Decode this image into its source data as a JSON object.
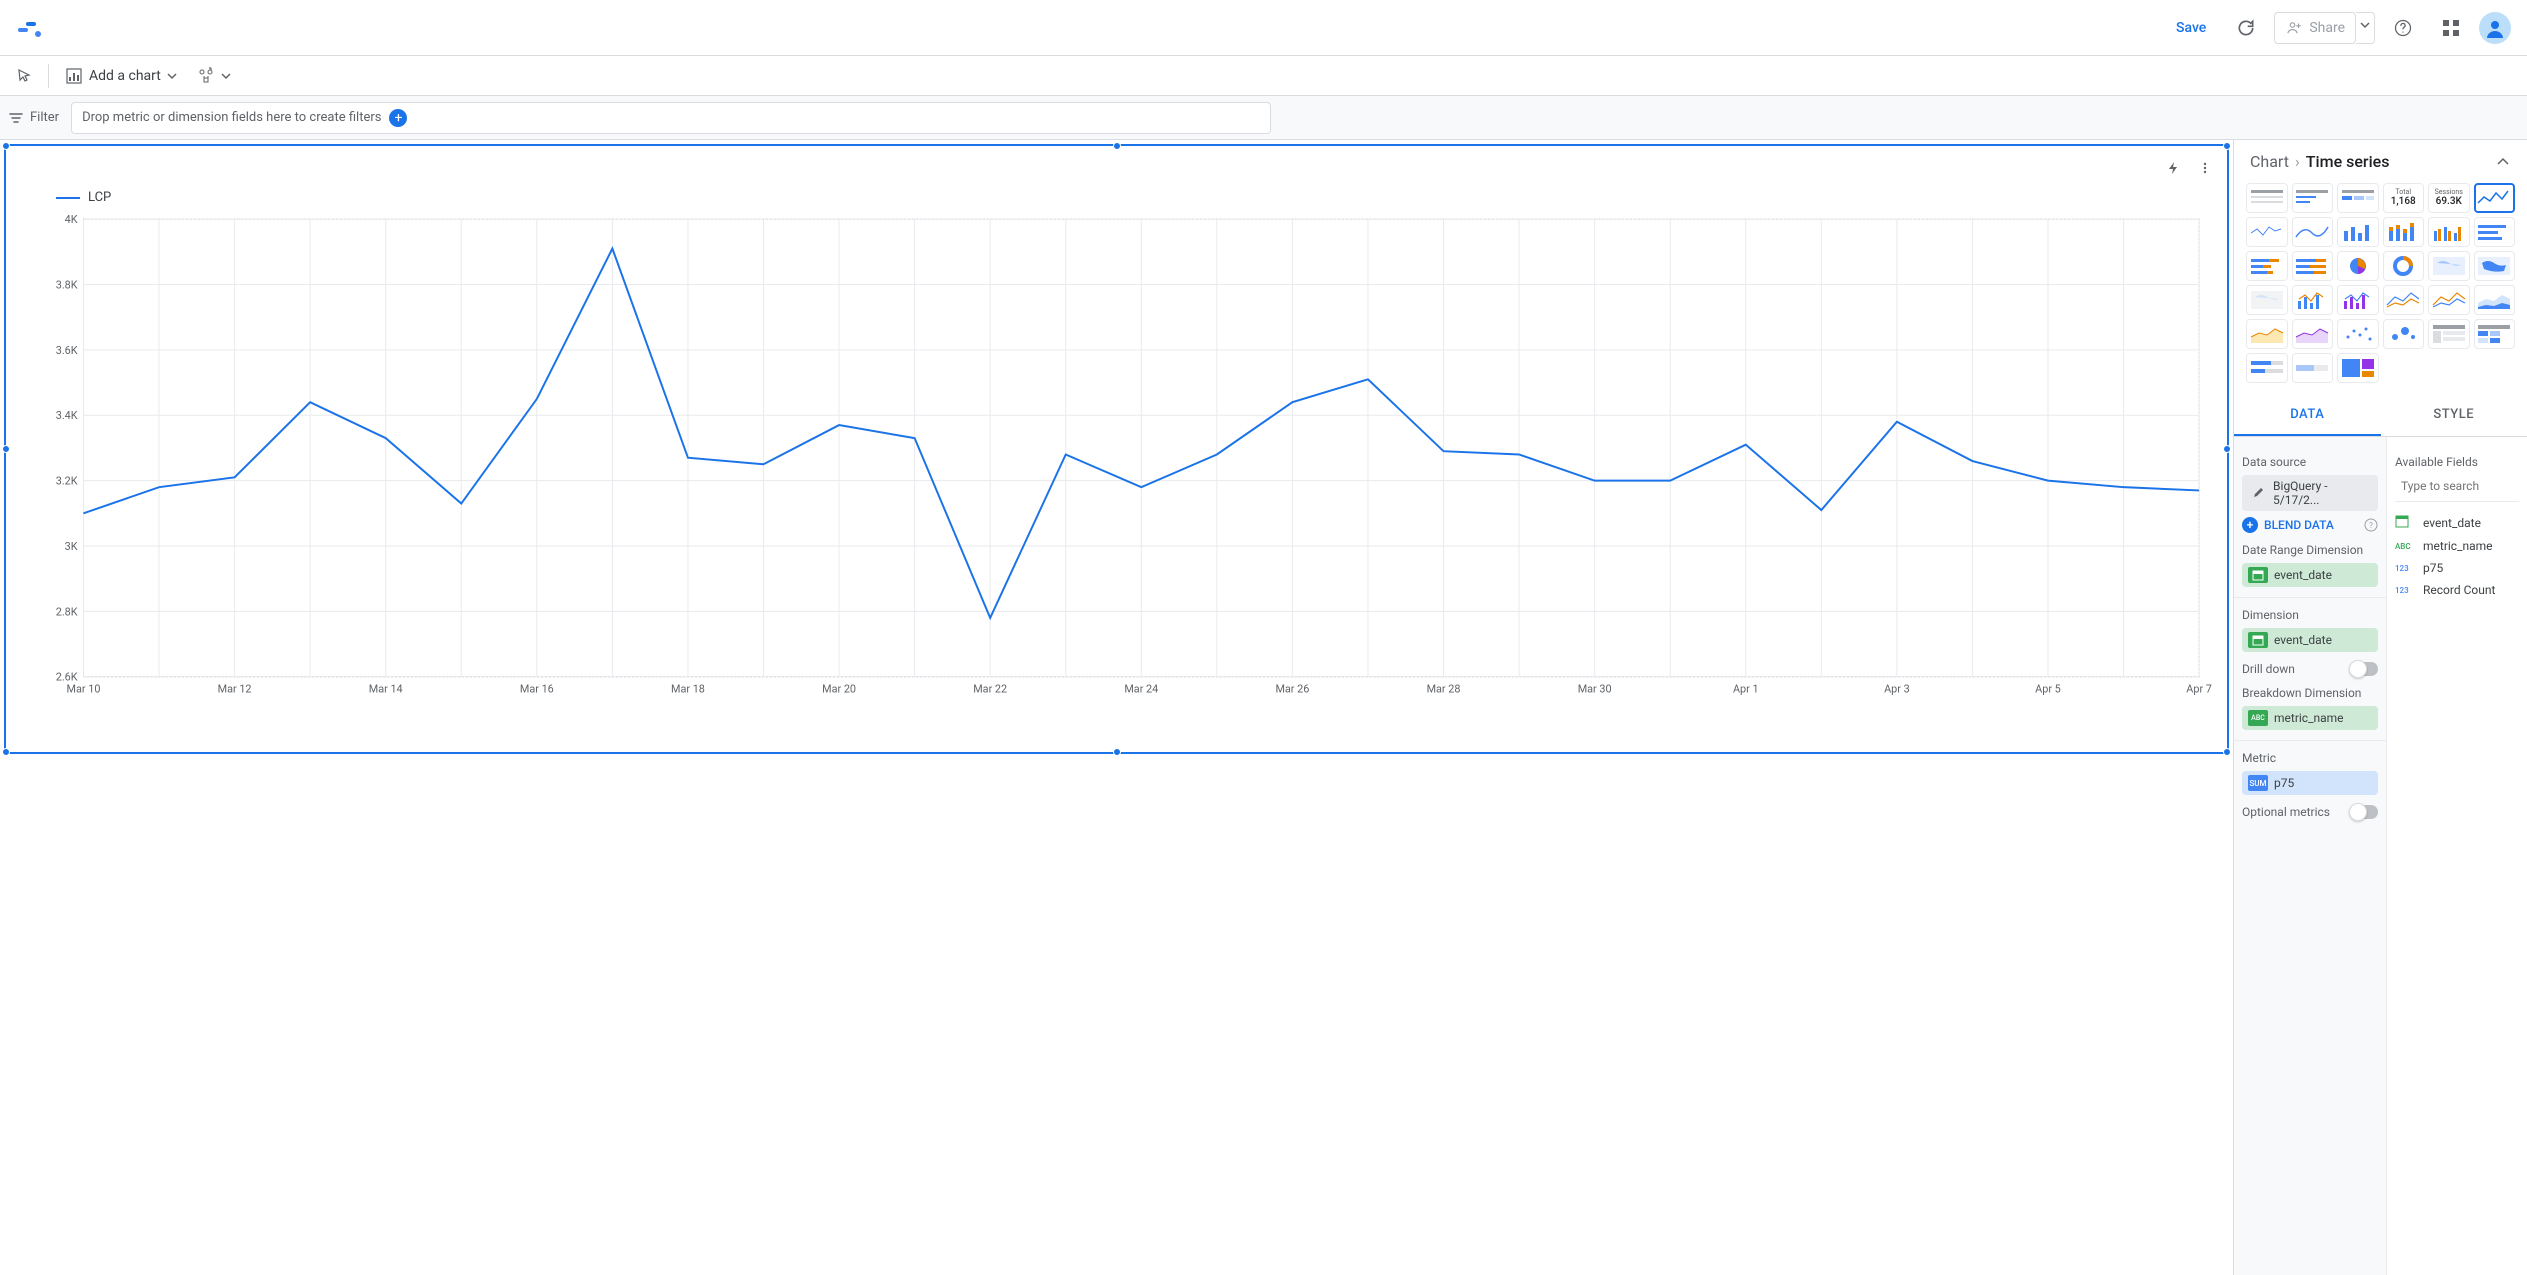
{
  "header": {
    "save_label": "Save",
    "share_label": "Share"
  },
  "toolbar": {
    "add_chart_label": "Add a chart"
  },
  "filter": {
    "label": "Filter",
    "placeholder": "Drop metric or dimension fields here to create filters"
  },
  "chart": {
    "type": "line",
    "legend_label": "LCP",
    "line_color": "#1a73e8",
    "background_color": "#ffffff",
    "grid_color": "#e8eaed",
    "border_color": "#9aa0a6",
    "border_dash": "2,2",
    "ylabel_fontsize": 11,
    "xlabel_fontsize": 11,
    "ylim": [
      2600,
      4000
    ],
    "ytick_step": 200,
    "yticks": [
      "4K",
      "3.8K",
      "3.6K",
      "3.4K",
      "3.2K",
      "3K",
      "2.8K",
      "2.6K"
    ],
    "xticks": [
      "Mar 10",
      "Mar 12",
      "Mar 14",
      "Mar 16",
      "Mar 18",
      "Mar 20",
      "Mar 22",
      "Mar 24",
      "Mar 26",
      "Mar 28",
      "Mar 30",
      "Apr 1",
      "Apr 3",
      "Apr 5",
      "Apr 7"
    ],
    "xvalues": [
      "Mar 10",
      "Mar 11",
      "Mar 12",
      "Mar 13",
      "Mar 14",
      "Mar 15",
      "Mar 16",
      "Mar 17",
      "Mar 18",
      "Mar 19",
      "Mar 20",
      "Mar 21",
      "Mar 22",
      "Mar 23",
      "Mar 24",
      "Mar 25",
      "Mar 26",
      "Mar 27",
      "Mar 28",
      "Mar 29",
      "Mar 30",
      "Mar 31",
      "Apr 1",
      "Apr 2",
      "Apr 3",
      "Apr 4",
      "Apr 5",
      "Apr 6",
      "Apr 7"
    ],
    "yvalues": [
      3100,
      3180,
      3210,
      3440,
      3330,
      3130,
      3450,
      3910,
      3270,
      3250,
      3370,
      3330,
      2780,
      3280,
      3180,
      3280,
      3440,
      3510,
      3290,
      3280,
      3200,
      3200,
      3310,
      3110,
      3380,
      3260,
      3200,
      3180,
      3170
    ]
  },
  "panel": {
    "breadcrumb_root": "Chart",
    "breadcrumb_leaf": "Time series",
    "scorecards": [
      {
        "label": "Total",
        "value": "1,168"
      },
      {
        "label": "Sessions",
        "value": "69.3K"
      }
    ],
    "tab_data": "DATA",
    "tab_style": "STYLE",
    "data_source_label": "Data source",
    "data_source_value": "BigQuery - 5/17/2...",
    "blend_label": "BLEND DATA",
    "date_range_label": "Date Range Dimension",
    "date_range_value": "event_date",
    "dimension_label": "Dimension",
    "dimension_value": "event_date",
    "drill_down_label": "Drill down",
    "breakdown_label": "Breakdown Dimension",
    "breakdown_value": "metric_name",
    "metric_label": "Metric",
    "metric_agg": "SUM",
    "metric_value": "p75",
    "optional_metrics_label": "Optional metrics",
    "available_fields_label": "Available Fields",
    "search_placeholder": "Type to search",
    "fields": [
      {
        "icon": "cal",
        "label": "event_date"
      },
      {
        "icon": "abc",
        "label": "metric_name"
      },
      {
        "icon": "123",
        "label": "p75"
      },
      {
        "icon": "123",
        "label": "Record Count"
      }
    ]
  }
}
